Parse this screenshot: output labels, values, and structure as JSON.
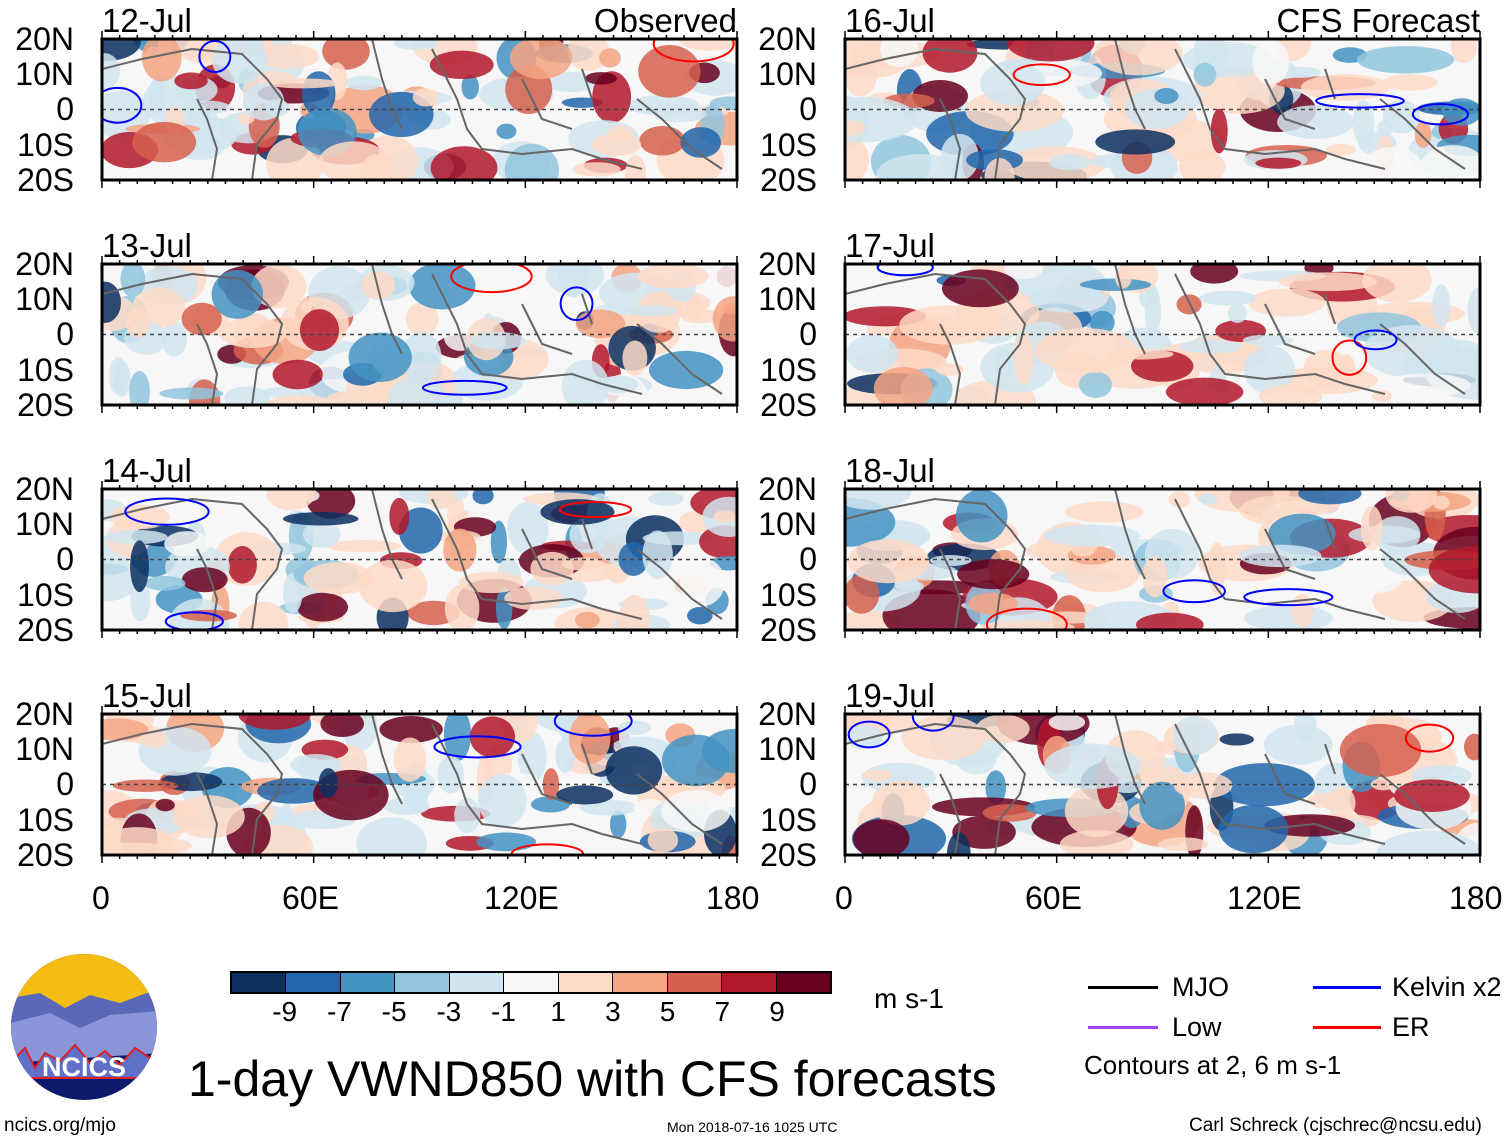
{
  "figure": {
    "title": "1-day VWND850 with CFS forecasts",
    "left_column_label": "Observed",
    "right_column_label": "CFS Forecast",
    "lat_labels": [
      "20N",
      "10N",
      "0",
      "10S",
      "20S"
    ],
    "lon_labels": [
      "0",
      "60E",
      "120E",
      "180"
    ],
    "panels_observed": [
      "12-Jul",
      "13-Jul",
      "14-Jul",
      "15-Jul"
    ],
    "panels_forecast": [
      "16-Jul",
      "17-Jul",
      "18-Jul",
      "19-Jul"
    ]
  },
  "colorbar": {
    "colors": [
      "#0b2f5f",
      "#2166ac",
      "#4393c3",
      "#92c5de",
      "#d1e5f0",
      "#f7f7f7",
      "#fddbc7",
      "#f4a582",
      "#d6604d",
      "#b2182b",
      "#67001f"
    ],
    "tick_labels": [
      "-9",
      "-7",
      "-5",
      "-3",
      "-1",
      "1",
      "3",
      "5",
      "7",
      "9"
    ],
    "units": "m s-1"
  },
  "legend": {
    "items": [
      {
        "label": "MJO",
        "color": "#000000"
      },
      {
        "label": "Kelvin x2",
        "color": "#0000ff"
      },
      {
        "label": "Low",
        "color": "#a040f0"
      },
      {
        "label": "ER",
        "color": "#ff0000"
      }
    ],
    "note": "Contours at 2, 6 m s-1"
  },
  "logo": {
    "text": "NCICS"
  },
  "footer": {
    "left": "ncics.org/mjo",
    "center": "Mon 2018-07-16 1025 UTC",
    "right": "Carl Schreck (cjschrec@ncsu.edu)"
  }
}
